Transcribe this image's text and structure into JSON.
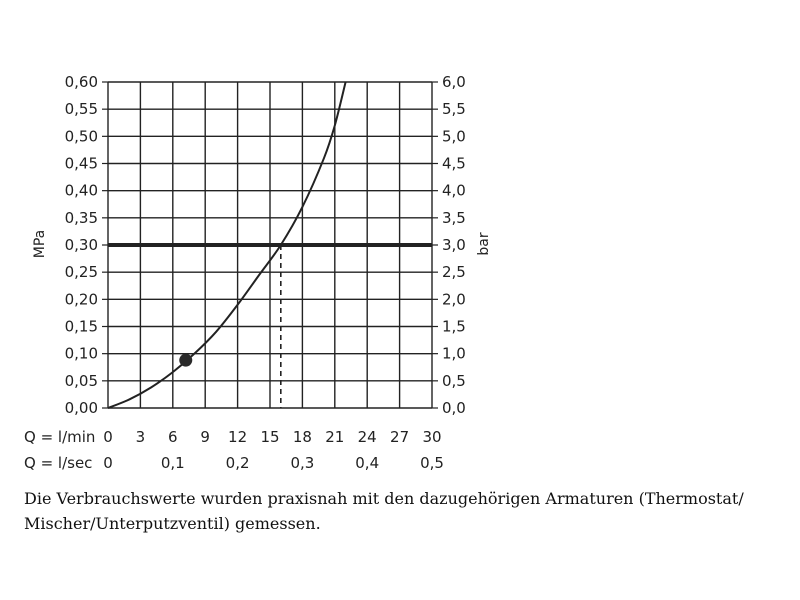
{
  "chart_data": {
    "type": "line",
    "title": "",
    "ylabel": "MPa",
    "ylabel_right": "bar",
    "xlabel_primary": "Q = l/min",
    "xlabel_secondary": "Q = l/sec",
    "xlim": [
      0,
      30
    ],
    "ylim": [
      0,
      0.6
    ],
    "ylim_right": [
      0,
      6
    ],
    "grid": true,
    "x_ticks": [
      "0",
      "3",
      "6",
      "9",
      "12",
      "15",
      "18",
      "21",
      "24",
      "27",
      "30"
    ],
    "x_ticks_values": [
      0,
      3,
      6,
      9,
      12,
      15,
      18,
      21,
      24,
      27,
      30
    ],
    "x_ticks_secondary": [
      "0",
      "0,1",
      "0,2",
      "0,3",
      "0,4",
      "0,5"
    ],
    "x_ticks_secondary_values": [
      0,
      6,
      12,
      18,
      24,
      30
    ],
    "y_ticks": [
      "0,00",
      "0,05",
      "0,10",
      "0,15",
      "0,20",
      "0,25",
      "0,30",
      "0,35",
      "0,40",
      "0,45",
      "0,50",
      "0,55",
      "0,60"
    ],
    "y_ticks_values": [
      0,
      0.05,
      0.1,
      0.15,
      0.2,
      0.25,
      0.3,
      0.35,
      0.4,
      0.45,
      0.5,
      0.55,
      0.6
    ],
    "y_ticks_right": [
      "0,0",
      "0,5",
      "1,0",
      "1,5",
      "2,0",
      "2,5",
      "3,0",
      "3,5",
      "4,0",
      "4,5",
      "5,0",
      "5,5",
      "6,0"
    ],
    "series": [
      {
        "x": [
          0,
          2,
          4,
          6,
          8,
          10,
          12,
          14,
          16,
          18,
          20,
          21,
          22
        ],
        "y": [
          0.0,
          0.016,
          0.038,
          0.066,
          0.1,
          0.14,
          0.19,
          0.245,
          0.3,
          0.37,
          0.46,
          0.52,
          0.6
        ]
      }
    ],
    "reference_line_y": 0.3,
    "operating_point": {
      "x": 16,
      "y": 0.3
    },
    "marker_point": {
      "x": 7.2,
      "y": 0.088
    },
    "colors": {
      "line": "#222222",
      "grid": "#222222"
    }
  },
  "caption": {
    "line1": "Die Verbrauchswerte wurden praxisnah mit den dazugehörigen Armaturen (Thermostat/",
    "line2": "Mischer/Unterputzventil) gemessen."
  }
}
